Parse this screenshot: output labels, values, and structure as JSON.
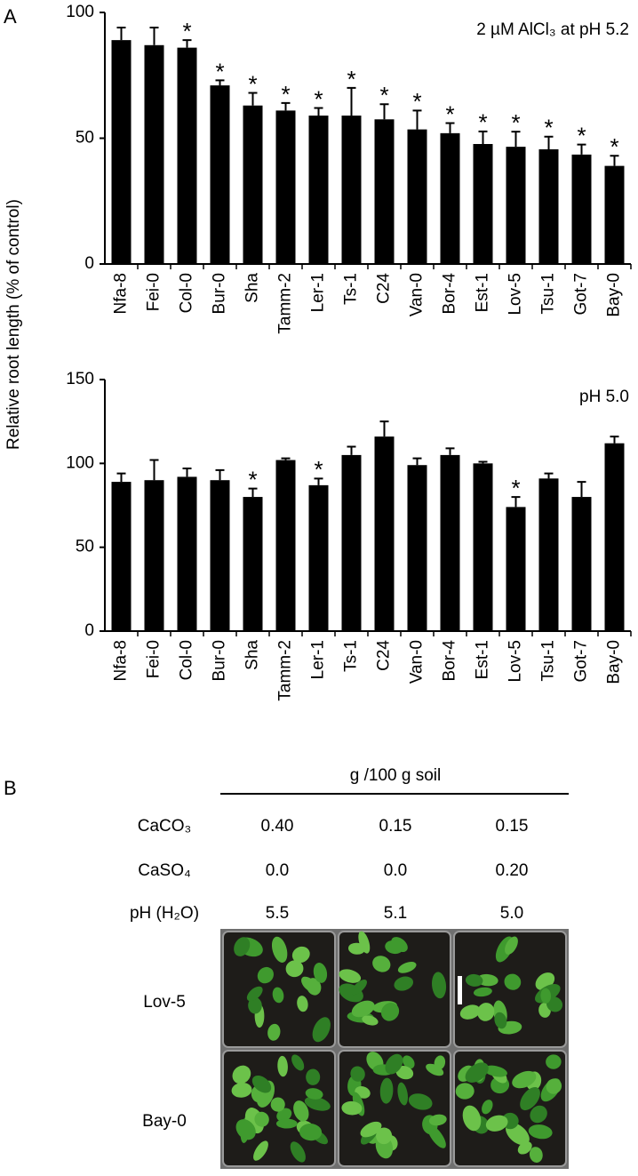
{
  "panel_labels": [
    "A",
    "B"
  ],
  "y_axis_label": "Relative root length (% of control)",
  "chart_data": [
    {
      "type": "bar",
      "title": "2 µM AlCl₃ at pH 5.2",
      "color": "#000000",
      "categories": [
        "Nfa-8",
        "Fei-0",
        "Col-0",
        "Bur-0",
        "Sha",
        "Tamm-2",
        "Ler-1",
        "Ts-1",
        "C24",
        "Van-0",
        "Bor-4",
        "Est-1",
        "Lov-5",
        "Tsu-1",
        "Got-7",
        "Bay-0"
      ],
      "values": [
        89,
        87,
        86,
        71,
        63,
        61,
        59,
        59,
        57.5,
        53.5,
        52,
        47.7,
        46.6,
        45.6,
        43.5,
        39
      ],
      "errors": [
        5,
        7,
        3,
        2,
        5,
        3,
        3,
        11,
        6,
        7.5,
        4,
        5,
        6,
        5,
        4,
        4
      ],
      "markers": [
        null,
        null,
        "*",
        "*",
        "*",
        "*",
        "*",
        "*",
        "*",
        "*",
        "*",
        "*",
        "*",
        "*",
        "*",
        "*"
      ],
      "ylim": [
        0,
        100
      ],
      "yticks": [
        0,
        50,
        100
      ]
    },
    {
      "type": "bar",
      "title": "pH 5.0",
      "color": "#000000",
      "categories": [
        "Nfa-8",
        "Fei-0",
        "Col-0",
        "Bur-0",
        "Sha",
        "Tamm-2",
        "Ler-1",
        "Ts-1",
        "C24",
        "Van-0",
        "Bor-4",
        "Est-1",
        "Lov-5",
        "Tsu-1",
        "Got-7",
        "Bay-0"
      ],
      "values": [
        89,
        90,
        92,
        90,
        80,
        102,
        87,
        105,
        116,
        99,
        105,
        100,
        74,
        91,
        80,
        112
      ],
      "errors": [
        5,
        12,
        5,
        6,
        5,
        1,
        4,
        5,
        9,
        4,
        4,
        1,
        6,
        3,
        9,
        4
      ],
      "markers": [
        null,
        null,
        null,
        null,
        "*",
        null,
        "*",
        null,
        null,
        null,
        null,
        null,
        "*",
        null,
        null,
        null
      ],
      "ylim": [
        0,
        150
      ],
      "yticks": [
        0,
        50,
        100,
        150
      ]
    }
  ],
  "table": {
    "header": "g /100 g soil",
    "rows": [
      [
        "CaCO₃",
        "0.40",
        "0.15",
        "0.15"
      ],
      [
        "CaSO₄",
        "0.0",
        "0.0",
        "0.20"
      ],
      [
        "pH (H₂O)",
        "5.5",
        "5.1",
        "5.0"
      ]
    ]
  },
  "photo_rows": [
    "Lov-5",
    "Bay-0"
  ]
}
